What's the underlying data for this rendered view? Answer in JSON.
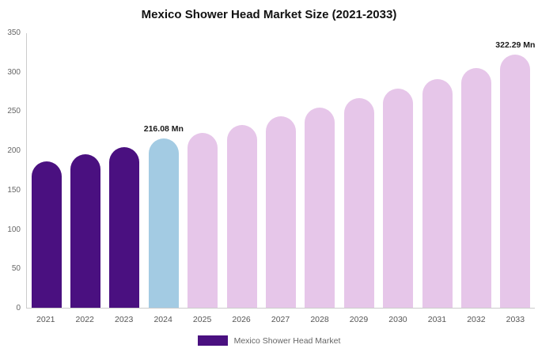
{
  "title": "Mexico Shower Head Market Size (2021-2033)",
  "legend": {
    "label": "Mexico Shower Head Market",
    "swatch_color": "#4a1080"
  },
  "colors": {
    "historical_bar": "#4a1080",
    "current_year_bar": "#a3cbe3",
    "forecast_bar": "#e6c6e9",
    "axis_line": "#cccccc",
    "tick_text": "#666666",
    "title_text": "#111111"
  },
  "chart_data": {
    "type": "bar",
    "title": "Mexico Shower Head Market Size (2021-2033)",
    "xlabel": "",
    "ylabel": "",
    "ylim": [
      0,
      350
    ],
    "yticks": [
      0,
      50,
      100,
      150,
      200,
      250,
      300,
      350
    ],
    "grid": false,
    "legend_position": "bottom",
    "categories": [
      "2021",
      "2022",
      "2023",
      "2024",
      "2025",
      "2026",
      "2027",
      "2028",
      "2029",
      "2030",
      "2031",
      "2032",
      "2033"
    ],
    "values": [
      187,
      196,
      205,
      216.08,
      223,
      233,
      244,
      255,
      267,
      279,
      292,
      306,
      322.29
    ],
    "bar_colors": [
      "#4a1080",
      "#4a1080",
      "#4a1080",
      "#a3cbe3",
      "#e6c6e9",
      "#e6c6e9",
      "#e6c6e9",
      "#e6c6e9",
      "#e6c6e9",
      "#e6c6e9",
      "#e6c6e9",
      "#e6c6e9",
      "#e6c6e9"
    ],
    "annotations": [
      {
        "category": "2024",
        "text": "216.08 Mn"
      },
      {
        "category": "2033",
        "text": "322.29 Mn"
      }
    ]
  }
}
